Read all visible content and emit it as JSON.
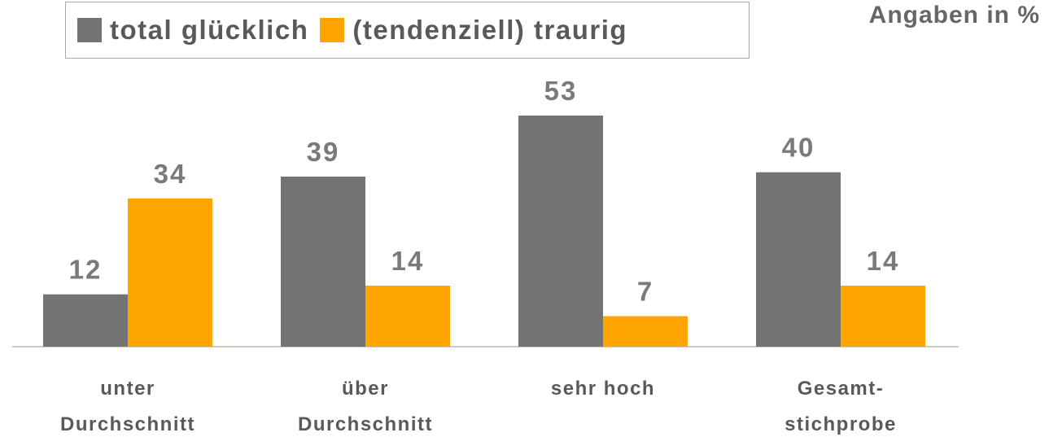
{
  "chart_data": {
    "type": "bar",
    "note_label": "Angaben in %",
    "categories": [
      "unter\nDurchschnitt",
      "über\nDurchschnitt",
      "sehr hoch",
      "Gesamt-\nstichprobe"
    ],
    "series": [
      {
        "name": "total glücklich",
        "color": "#737373",
        "values": [
          12,
          39,
          53,
          40
        ]
      },
      {
        "name": "(tendenziell) traurig",
        "color": "#ffa500",
        "values": [
          34,
          14,
          7,
          14
        ]
      }
    ],
    "legend": "top-left"
  }
}
